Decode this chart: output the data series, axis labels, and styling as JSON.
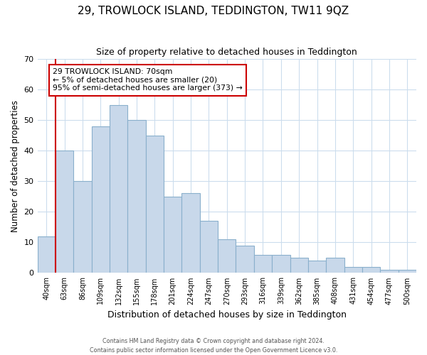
{
  "title": "29, TROWLOCK ISLAND, TEDDINGTON, TW11 9QZ",
  "subtitle": "Size of property relative to detached houses in Teddington",
  "xlabel": "Distribution of detached houses by size in Teddington",
  "ylabel": "Number of detached properties",
  "bar_labels": [
    "40sqm",
    "63sqm",
    "86sqm",
    "109sqm",
    "132sqm",
    "155sqm",
    "178sqm",
    "201sqm",
    "224sqm",
    "247sqm",
    "270sqm",
    "293sqm",
    "316sqm",
    "339sqm",
    "362sqm",
    "385sqm",
    "408sqm",
    "431sqm",
    "454sqm",
    "477sqm",
    "500sqm"
  ],
  "bar_values": [
    12,
    40,
    30,
    48,
    55,
    50,
    45,
    25,
    26,
    17,
    11,
    9,
    6,
    6,
    5,
    4,
    5,
    2,
    2,
    1,
    1
  ],
  "bar_color": "#c8d8ea",
  "bar_edge_color": "#8ab0cc",
  "vline_x_index": 1,
  "vline_color": "#cc0000",
  "annotation_text": "29 TROWLOCK ISLAND: 70sqm\n← 5% of detached houses are smaller (20)\n95% of semi-detached houses are larger (373) →",
  "annotation_box_edgecolor": "#cc0000",
  "ylim": [
    0,
    70
  ],
  "yticks": [
    0,
    10,
    20,
    30,
    40,
    50,
    60,
    70
  ],
  "footer_line1": "Contains HM Land Registry data © Crown copyright and database right 2024.",
  "footer_line2": "Contains public sector information licensed under the Open Government Licence v3.0.",
  "background_color": "#ffffff",
  "grid_color": "#ccdded"
}
